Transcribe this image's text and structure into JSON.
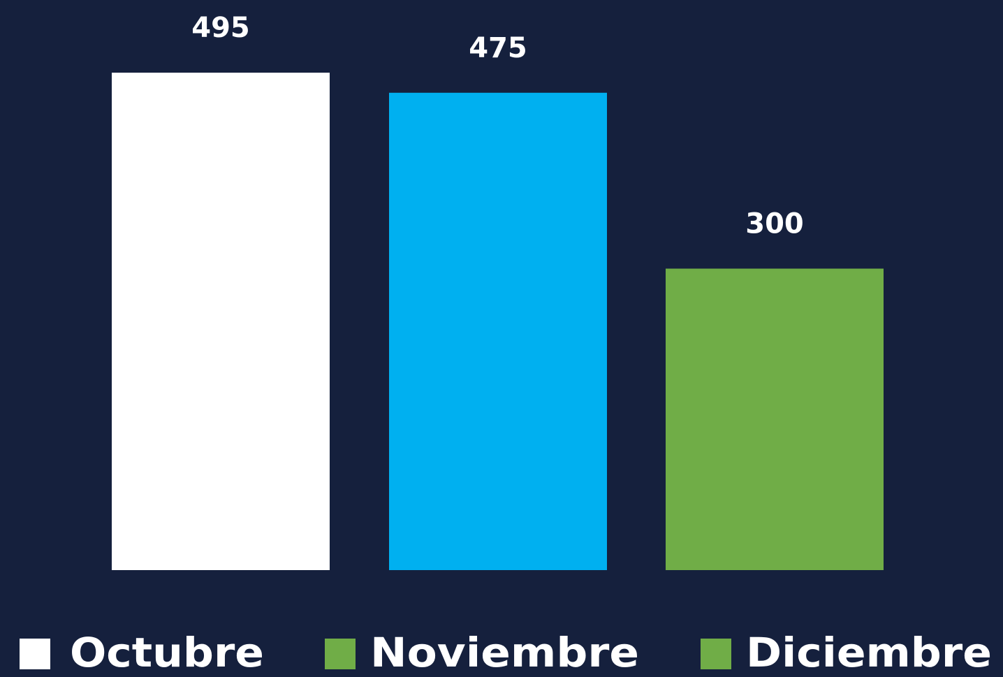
{
  "chart_data": {
    "type": "bar",
    "series": [
      {
        "name": "Octubre",
        "color": "#ffffff",
        "values": [
          495
        ]
      },
      {
        "name": "Noviembre",
        "color": "#00b0f0",
        "values": [
          475
        ]
      },
      {
        "name": "Diciembre",
        "color": "#70ad47",
        "values": [
          300
        ]
      }
    ],
    "legend_colors": [
      "#ffffff",
      "#70ad47",
      "#70ad47"
    ],
    "legend": "bottom",
    "background": "#15203d"
  }
}
